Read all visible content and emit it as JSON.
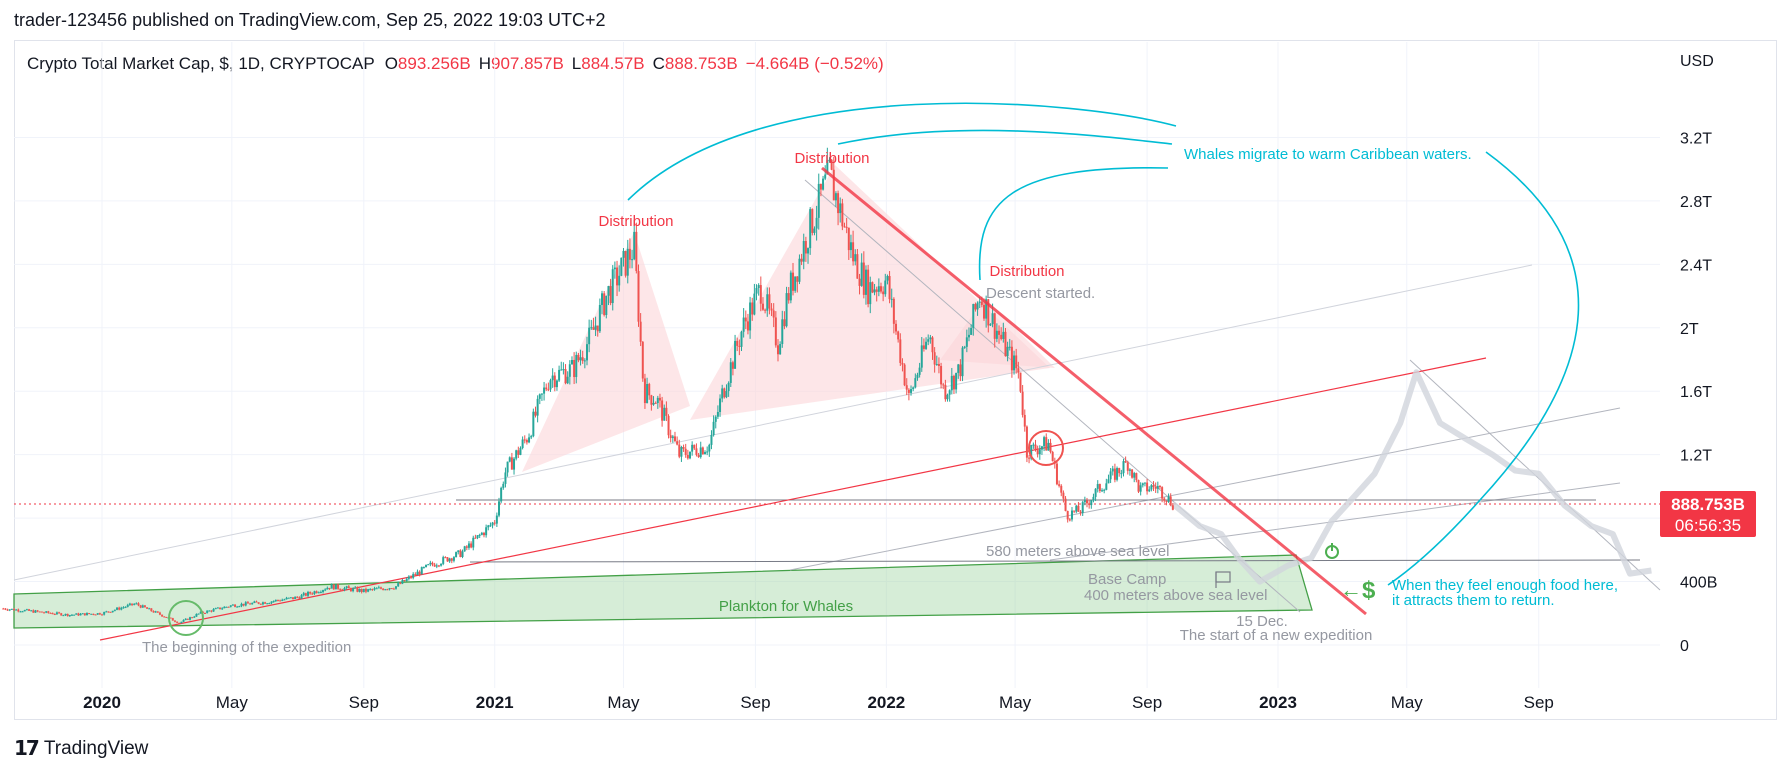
{
  "header": {
    "published_by": "trader-123456 published on TradingView.com, Sep 25, 2022 19:03 UTC+2"
  },
  "legend": {
    "symbol": "Crypto Total Market Cap, $, 1D, CRYPTOCAP",
    "open_label": "O",
    "open": "893.256B",
    "high_label": "H",
    "high": "907.857B",
    "low_label": "L",
    "low": "884.57B",
    "close_label": "C",
    "close": "888.753B",
    "change": "−4.664B (−0.52%)"
  },
  "price_axis": {
    "currency": "USD",
    "current_price": "888.753B",
    "countdown": "06:56:35"
  },
  "footer": {
    "brand": "TradingView"
  },
  "colors": {
    "bull": "#26a69a",
    "bear": "#ef5350",
    "distribution": "#f23645",
    "annotation_blue": "#00bcd4",
    "plankton_fill": "#a5d6a7",
    "plankton_line": "#43a047"
  },
  "annotations": {
    "distribution_1": "Distribution",
    "distribution_2": "Distribution",
    "distribution_3": "Distribution",
    "descent": "Descent started.",
    "whales": "Whales migrate to warm Caribbean waters.",
    "sea_580": "580 meters above sea level",
    "base_camp": "Base Camp",
    "sea_400": "400 meters above sea level",
    "plankton": "Plankton for Whales",
    "beginning": "The beginning of the expedition",
    "dec15": "15 Dec.",
    "new_expedition": "The start of a new expedition",
    "food_1": "When they feel enough food here,",
    "food_2": "it attracts them to return.",
    "dollar": "$",
    "arrow": "←"
  },
  "chart_data": {
    "type": "line",
    "title": "Crypto Total Market Cap, $, 1D, CRYPTOCAP",
    "ylabel": "USD",
    "y_ticks": [
      "0",
      "400B",
      "1.2T",
      "1.6T",
      "2T",
      "2.4T",
      "2.8T",
      "3.2T"
    ],
    "x_ticks": [
      "2020",
      "May",
      "Sep",
      "2021",
      "May",
      "Sep",
      "2022",
      "May",
      "Sep",
      "2023",
      "May",
      "Sep"
    ],
    "x_tick_dates": [
      "2020-01-01",
      "2020-05-01",
      "2020-09-01",
      "2021-01-01",
      "2021-05-01",
      "2021-09-01",
      "2022-01-01",
      "2022-05-01",
      "2022-09-01",
      "2023-01-01",
      "2023-05-01",
      "2023-09-01"
    ],
    "ylim": [
      0,
      3.6
    ],
    "y_unit": "T",
    "current_price": 0.888753,
    "series": [
      {
        "x": [
          "2019-10-01",
          "2019-11-01",
          "2019-12-01",
          "2020-01-01",
          "2020-02-01",
          "2020-03-13",
          "2020-04-01",
          "2020-05-01",
          "2020-06-01",
          "2020-07-01",
          "2020-08-01",
          "2020-09-01",
          "2020-10-01",
          "2020-11-01",
          "2020-12-01",
          "2021-01-01",
          "2021-01-10",
          "2021-02-01",
          "2021-02-21",
          "2021-03-15",
          "2021-04-01",
          "2021-04-15",
          "2021-05-11",
          "2021-05-20",
          "2021-06-01",
          "2021-06-22",
          "2021-07-20",
          "2021-08-01",
          "2021-08-20",
          "2021-09-06",
          "2021-09-22",
          "2021-10-01",
          "2021-10-20",
          "2021-11-09",
          "2021-12-01",
          "2021-12-15",
          "2022-01-01",
          "2022-01-22",
          "2022-02-10",
          "2022-02-24",
          "2022-03-10",
          "2022-03-29",
          "2022-04-20",
          "2022-05-05",
          "2022-05-12",
          "2022-06-01",
          "2022-06-18",
          "2022-07-01",
          "2022-07-20",
          "2022-08-14",
          "2022-08-25",
          "2022-09-10",
          "2022-09-25"
        ],
        "y": [
          0.23,
          0.21,
          0.19,
          0.2,
          0.26,
          0.14,
          0.2,
          0.25,
          0.27,
          0.3,
          0.37,
          0.34,
          0.37,
          0.5,
          0.58,
          0.78,
          1.08,
          1.32,
          1.69,
          1.74,
          1.95,
          2.2,
          2.51,
          1.6,
          1.55,
          1.2,
          1.26,
          1.58,
          2.0,
          2.25,
          1.9,
          2.2,
          2.6,
          2.97,
          2.45,
          2.25,
          2.3,
          1.55,
          1.96,
          1.6,
          1.73,
          2.21,
          1.9,
          1.7,
          1.22,
          1.27,
          0.82,
          0.85,
          1.0,
          1.15,
          0.98,
          1.0,
          0.89
        ]
      }
    ],
    "projection": {
      "x": [
        "2022-09-25",
        "2022-10-20",
        "2022-11-09",
        "2022-11-25",
        "2022-12-15",
        "2023-01-10",
        "2023-02-01",
        "2023-02-20",
        "2023-03-15",
        "2023-04-01",
        "2023-04-25",
        "2023-05-10",
        "2023-06-01",
        "2023-06-25",
        "2023-07-20",
        "2023-08-10",
        "2023-09-01",
        "2023-09-25",
        "2023-10-20",
        "2023-11-09",
        "2023-11-25",
        "2023-12-15"
      ],
      "y": [
        0.89,
        0.75,
        0.7,
        0.55,
        0.4,
        0.5,
        0.55,
        0.78,
        0.95,
        1.08,
        1.4,
        1.72,
        1.4,
        1.3,
        1.2,
        1.1,
        1.08,
        0.88,
        0.75,
        0.7,
        0.45,
        0.47
      ]
    }
  }
}
